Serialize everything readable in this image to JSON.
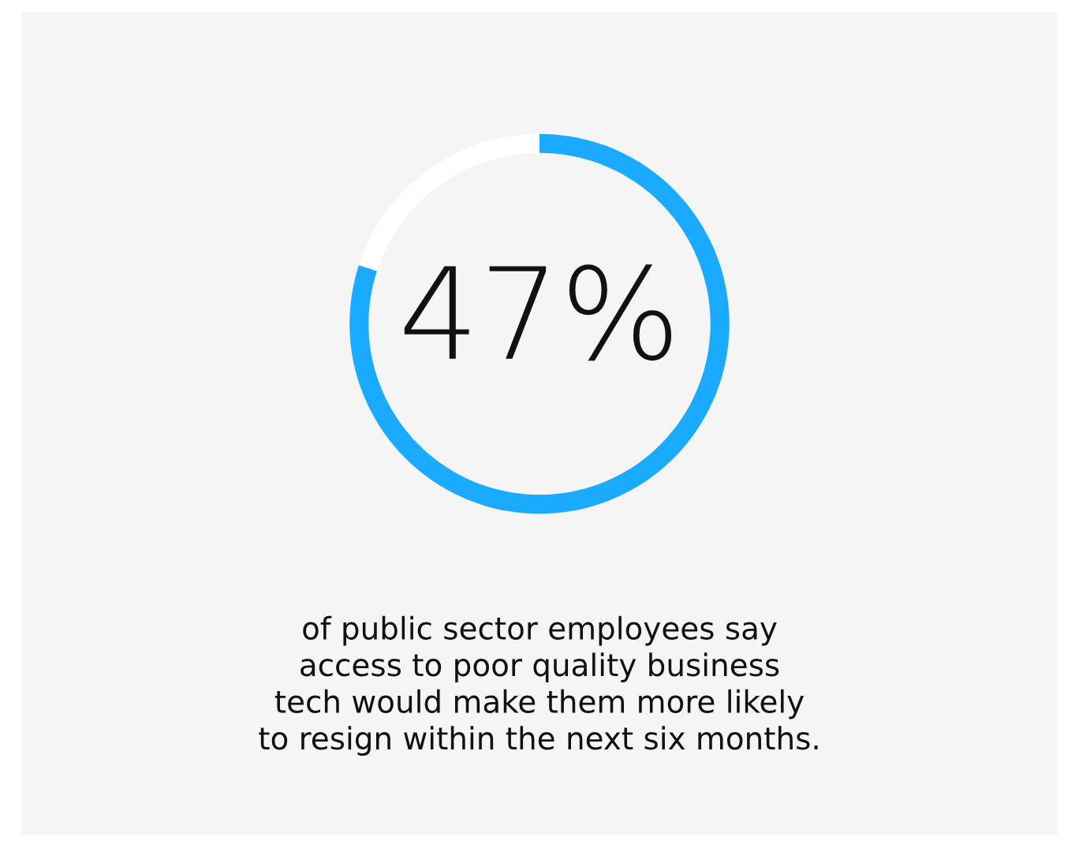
{
  "chart_data": {
    "type": "donut",
    "categories": [
      null,
      null
    ],
    "values": [
      80,
      20
    ],
    "colors": [
      "#1aabff",
      "#ffffff"
    ],
    "annotations": [
      "47%",
      "of public sector employees say\naccess to poor quality business\ntech would make them more likely\nto resign within the next six months."
    ]
  }
}
